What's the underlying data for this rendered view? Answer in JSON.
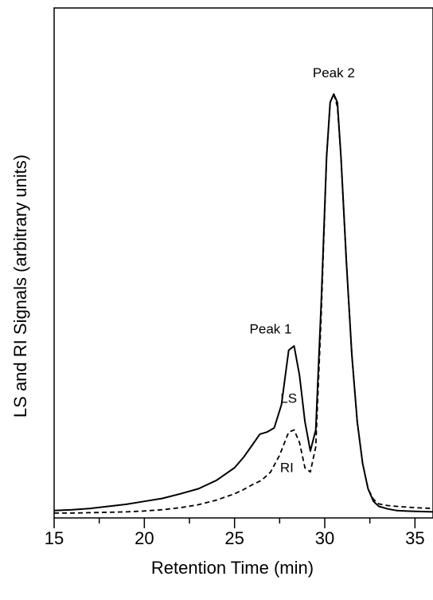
{
  "chart_data": {
    "type": "line",
    "xlabel": "Retention Time (min)",
    "ylabel": "LS and RI Signals (arbitrary units)",
    "xlim": [
      15,
      36
    ],
    "ylim": [
      0,
      1
    ],
    "x_ticks": [
      "15",
      "20",
      "25",
      "30",
      "35"
    ],
    "y_ticks": [],
    "grid": false,
    "series": [
      {
        "name": "LS",
        "style": "solid",
        "x": [
          15,
          16,
          17,
          18,
          19,
          20,
          21,
          22,
          23,
          24,
          24.5,
          25,
          25.5,
          26,
          26.4,
          26.8,
          27.2,
          27.6,
          28.0,
          28.3,
          28.6,
          28.9,
          29.2,
          29.5,
          29.8,
          30.1,
          30.3,
          30.5,
          30.7,
          30.9,
          31.2,
          31.5,
          31.8,
          32.1,
          32.4,
          32.7,
          33.0,
          33.5,
          34,
          35,
          36
        ],
        "y": [
          0.008,
          0.01,
          0.013,
          0.018,
          0.023,
          0.03,
          0.037,
          0.048,
          0.06,
          0.08,
          0.095,
          0.11,
          0.135,
          0.165,
          0.19,
          0.195,
          0.205,
          0.26,
          0.39,
          0.4,
          0.33,
          0.22,
          0.15,
          0.2,
          0.5,
          0.85,
          0.98,
          1.0,
          0.98,
          0.85,
          0.6,
          0.38,
          0.22,
          0.12,
          0.06,
          0.03,
          0.018,
          0.012,
          0.008,
          0.006,
          0.005
        ]
      },
      {
        "name": "RI",
        "style": "dashed",
        "x": [
          15,
          16,
          17,
          18,
          19,
          20,
          21,
          22,
          23,
          24,
          25,
          25.5,
          26,
          26.5,
          27,
          27.5,
          28.0,
          28.3,
          28.6,
          28.9,
          29.2,
          29.5,
          29.8,
          30.1,
          30.3,
          30.5,
          30.7,
          30.9,
          31.2,
          31.5,
          31.8,
          32.1,
          32.4,
          32.7,
          33.0,
          33.5,
          34,
          35,
          36
        ],
        "y": [
          0.002,
          0.002,
          0.003,
          0.004,
          0.005,
          0.007,
          0.01,
          0.015,
          0.022,
          0.033,
          0.048,
          0.058,
          0.07,
          0.08,
          0.1,
          0.14,
          0.195,
          0.2,
          0.17,
          0.11,
          0.1,
          0.16,
          0.47,
          0.85,
          0.98,
          1.0,
          0.97,
          0.85,
          0.6,
          0.38,
          0.22,
          0.12,
          0.06,
          0.035,
          0.024,
          0.02,
          0.018,
          0.015,
          0.013
        ]
      }
    ],
    "annotations": [
      {
        "text": "Peak 1",
        "x": 27.0,
        "y": 0.43
      },
      {
        "text": "Peak 2",
        "x": 30.5,
        "y": 1.04
      },
      {
        "text": "LS",
        "x": 28.0,
        "y": 0.265
      },
      {
        "text": "RI",
        "x": 27.9,
        "y": 0.1
      }
    ]
  }
}
